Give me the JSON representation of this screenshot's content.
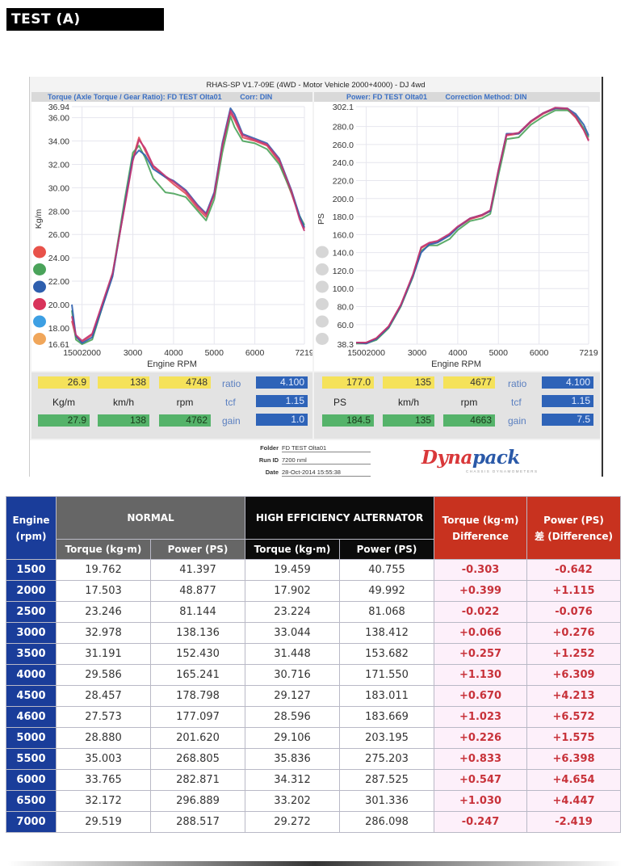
{
  "page_title": "TEST (A)",
  "dyno_sheet": {
    "header": "RHAS-SP V1.7-09E  (4WD - Motor Vehicle 2000+4000) - DJ 4wd",
    "torque_header": "Torque (Axle Torque / Gear Ratio): FD TEST Olta01",
    "torque_corr": "Corr: DIN",
    "power_header": "Power: FD TEST Olta01",
    "power_corr": "Correction Method: DIN",
    "left_readouts": {
      "yellow": [
        "26.9",
        "138",
        "4748"
      ],
      "units": [
        "Kg/m",
        "km/h",
        "rpm"
      ],
      "green": [
        "27.9",
        "138",
        "4762"
      ],
      "k_labels": [
        "ratio",
        "tcf",
        "gain"
      ],
      "k_values": [
        "4.100",
        "1.15",
        "1.0"
      ]
    },
    "right_readouts": {
      "yellow": [
        "177.0",
        "135",
        "4677"
      ],
      "units": [
        "PS",
        "km/h",
        "rpm"
      ],
      "green": [
        "184.5",
        "135",
        "4663"
      ],
      "k_labels": [
        "ratio",
        "tcf",
        "gain"
      ],
      "k_values": [
        "4.100",
        "1.15",
        "7.5"
      ]
    },
    "meta": {
      "folder_label": "Folder",
      "folder_value": "FD TEST Olta01",
      "run_label": "Run ID",
      "run_value": "7200 nml",
      "date_label": "Date",
      "date_value": "28-Oct-2014   15:55:38"
    },
    "logo": {
      "dyna": "Dyna",
      "pack": "pack",
      "sub": "CHASSIS DYNAMOMETERS"
    }
  },
  "chart_data": [
    {
      "type": "line",
      "title": "Torque (Axle Torque / Gear Ratio): FD TEST Olta01",
      "xlabel": "Engine RPM",
      "ylabel": "Kg/m",
      "xlim": [
        1500,
        7219
      ],
      "ylim": [
        16.61,
        36.94
      ],
      "x_ticks": [
        "15002000",
        "3000",
        "4000",
        "5000",
        "6000",
        "7219"
      ],
      "x_tick_values": [
        1750,
        3000,
        4000,
        5000,
        6000,
        7219
      ],
      "y_ticks": [
        "36.94",
        "36.00",
        "34.00",
        "32.00",
        "30.00",
        "28.00",
        "26.00",
        "24.00",
        "22.00",
        "20.00",
        "18.00",
        "16.61"
      ],
      "y_tick_values": [
        36.94,
        36,
        34,
        32,
        30,
        28,
        26,
        24,
        22,
        20,
        18,
        16.61
      ],
      "grid": true,
      "legend_colors": [
        "#e8524a",
        "#4aa35a",
        "#2e5fae",
        "#d8335a",
        "#3d9fe3",
        "#f0a65a"
      ],
      "series": [
        {
          "name": "red",
          "color": "#e04a55",
          "x": [
            1500,
            1600,
            1750,
            2000,
            2500,
            2800,
            3000,
            3150,
            3300,
            3500,
            3800,
            4000,
            4300,
            4600,
            4800,
            5000,
            5200,
            5400,
            5500,
            5700,
            6000,
            6300,
            6600,
            6900,
            7100,
            7219
          ],
          "y": [
            18.6,
            17.2,
            16.8,
            17.4,
            22.5,
            28.5,
            32.5,
            34.3,
            33.2,
            31.8,
            30.9,
            30.3,
            29.5,
            28.2,
            27.5,
            29.5,
            33.5,
            36.4,
            35.8,
            34.3,
            34.0,
            33.6,
            32.2,
            29.5,
            27.5,
            26.5
          ]
        },
        {
          "name": "green",
          "color": "#4aa35a",
          "x": [
            1500,
            1600,
            1750,
            2000,
            2500,
            2800,
            3000,
            3150,
            3300,
            3500,
            3800,
            4000,
            4300,
            4600,
            4800,
            5000,
            5200,
            5400,
            5500,
            5700,
            6000,
            6300,
            6600,
            6900,
            7100,
            7219
          ],
          "y": [
            19.5,
            17.0,
            16.6,
            17.0,
            22.6,
            29.0,
            33.0,
            33.6,
            32.6,
            30.8,
            29.6,
            29.5,
            29.2,
            28.0,
            27.2,
            29.0,
            33.0,
            36.1,
            35.2,
            34.0,
            33.8,
            33.3,
            32.0,
            29.6,
            27.6,
            26.8
          ]
        },
        {
          "name": "blue",
          "color": "#2e5fae",
          "x": [
            1500,
            1600,
            1750,
            2000,
            2500,
            2800,
            3000,
            3150,
            3300,
            3500,
            3800,
            4000,
            4300,
            4600,
            4800,
            5000,
            5200,
            5400,
            5500,
            5700,
            6000,
            6300,
            6600,
            6900,
            7100,
            7219
          ],
          "y": [
            20.0,
            17.3,
            16.7,
            17.2,
            22.4,
            28.6,
            32.6,
            33.2,
            32.8,
            31.6,
            30.9,
            30.6,
            29.8,
            28.5,
            27.8,
            29.6,
            33.8,
            36.8,
            36.3,
            34.6,
            34.2,
            33.8,
            32.5,
            29.8,
            27.6,
            26.6
          ]
        },
        {
          "name": "magenta",
          "color": "#c23372",
          "x": [
            1500,
            1600,
            1750,
            2000,
            2500,
            2800,
            3000,
            3150,
            3300,
            3500,
            3800,
            4000,
            4300,
            4600,
            4800,
            5000,
            5200,
            5400,
            5500,
            5700,
            6000,
            6300,
            6600,
            6900,
            7100,
            7219
          ],
          "y": [
            19.0,
            17.4,
            16.9,
            17.5,
            22.7,
            28.4,
            32.3,
            34.1,
            33.4,
            31.9,
            31.0,
            30.5,
            29.7,
            28.4,
            27.7,
            29.4,
            33.6,
            36.6,
            36.0,
            34.5,
            34.1,
            33.7,
            32.4,
            29.7,
            27.3,
            26.3
          ]
        }
      ]
    },
    {
      "type": "line",
      "title": "Power: FD TEST Olta01",
      "xlabel": "Engine RPM",
      "ylabel": "PS",
      "xlim": [
        1500,
        7219
      ],
      "ylim": [
        38.3,
        302.1
      ],
      "x_ticks": [
        "15002000",
        "3000",
        "4000",
        "5000",
        "6000",
        "7219"
      ],
      "x_tick_values": [
        1750,
        3000,
        4000,
        5000,
        6000,
        7219
      ],
      "y_ticks": [
        "302.1",
        "280.0",
        "260.0",
        "240.0",
        "220.0",
        "200.0",
        "180.0",
        "160.0",
        "140.0",
        "120.0",
        "100.0",
        "80.0",
        "60.0",
        "38.3"
      ],
      "y_tick_values": [
        302.1,
        280,
        260,
        240,
        220,
        200,
        180,
        160,
        140,
        120,
        100,
        80,
        60,
        38.3
      ],
      "grid": true,
      "legend_colors": [
        "#d6d6d6",
        "#d6d6d6",
        "#d6d6d6",
        "#d6d6d6",
        "#d6d6d6",
        "#d6d6d6"
      ],
      "series": [
        {
          "name": "red",
          "color": "#e04a55",
          "x": [
            1500,
            1750,
            2000,
            2300,
            2600,
            2900,
            3100,
            3300,
            3500,
            3800,
            4000,
            4300,
            4600,
            4800,
            5000,
            5200,
            5500,
            5800,
            6100,
            6400,
            6700,
            6900,
            7100,
            7219
          ],
          "y": [
            40,
            40,
            45,
            58,
            82,
            115,
            145,
            150,
            152,
            160,
            168,
            177,
            181,
            186,
            230,
            270,
            272,
            285,
            294,
            300,
            299,
            290,
            276,
            265
          ]
        },
        {
          "name": "green",
          "color": "#4aa35a",
          "x": [
            1500,
            1750,
            2000,
            2300,
            2600,
            2900,
            3100,
            3300,
            3500,
            3800,
            4000,
            4300,
            4600,
            4800,
            5000,
            5200,
            5500,
            5800,
            6100,
            6400,
            6700,
            6900,
            7100,
            7219
          ],
          "y": [
            39,
            39,
            43,
            56,
            80,
            113,
            142,
            148,
            148,
            155,
            165,
            175,
            178,
            183,
            226,
            266,
            268,
            282,
            291,
            298,
            298,
            292,
            278,
            268
          ]
        },
        {
          "name": "blue",
          "color": "#2e5fae",
          "x": [
            1500,
            1750,
            2000,
            2300,
            2600,
            2900,
            3100,
            3300,
            3500,
            3800,
            4000,
            4300,
            4600,
            4800,
            5000,
            5200,
            5500,
            5800,
            6100,
            6400,
            6700,
            6900,
            7100,
            7219
          ],
          "y": [
            40,
            39,
            44,
            57,
            81,
            114,
            140,
            149,
            151,
            159,
            168,
            178,
            182,
            186,
            231,
            272,
            272,
            286,
            295,
            300,
            300,
            294,
            282,
            270
          ]
        },
        {
          "name": "magenta",
          "color": "#c23372",
          "x": [
            1500,
            1750,
            2000,
            2300,
            2600,
            2900,
            3100,
            3300,
            3500,
            3800,
            4000,
            4300,
            4600,
            4800,
            5000,
            5200,
            5500,
            5800,
            6100,
            6400,
            6700,
            6900,
            7100,
            7219
          ],
          "y": [
            40,
            40,
            45,
            58,
            82,
            116,
            146,
            151,
            153,
            161,
            169,
            178,
            182,
            187,
            232,
            271,
            273,
            286,
            295,
            301,
            300,
            291,
            276,
            264
          ]
        }
      ]
    }
  ],
  "table": {
    "header_engine": [
      "Engine",
      "(rpm)"
    ],
    "group_normal": "NORMAL",
    "group_hea": "HIGH EFFICIENCY ALTERNATOR",
    "diff_torque": [
      "Torque (kg·m)",
      "Difference"
    ],
    "diff_power": [
      "Power (PS)",
      "差 (Difference)"
    ],
    "sub_torque": "Torque (kg·m)",
    "sub_power": "Power (PS)",
    "rows": [
      [
        "1500",
        "19.762",
        "41.397",
        "19.459",
        "40.755",
        "-0.303",
        "-0.642"
      ],
      [
        "2000",
        "17.503",
        "48.877",
        "17.902",
        "49.992",
        "+0.399",
        "+1.115"
      ],
      [
        "2500",
        "23.246",
        "81.144",
        "23.224",
        "81.068",
        "-0.022",
        "-0.076"
      ],
      [
        "3000",
        "32.978",
        "138.136",
        "33.044",
        "138.412",
        "+0.066",
        "+0.276"
      ],
      [
        "3500",
        "31.191",
        "152.430",
        "31.448",
        "153.682",
        "+0.257",
        "+1.252"
      ],
      [
        "4000",
        "29.586",
        "165.241",
        "30.716",
        "171.550",
        "+1.130",
        "+6.309"
      ],
      [
        "4500",
        "28.457",
        "178.798",
        "29.127",
        "183.011",
        "+0.670",
        "+4.213"
      ],
      [
        "4600",
        "27.573",
        "177.097",
        "28.596",
        "183.669",
        "+1.023",
        "+6.572"
      ],
      [
        "5000",
        "28.880",
        "201.620",
        "29.106",
        "203.195",
        "+0.226",
        "+1.575"
      ],
      [
        "5500",
        "35.003",
        "268.805",
        "35.836",
        "275.203",
        "+0.833",
        "+6.398"
      ],
      [
        "6000",
        "33.765",
        "282.871",
        "34.312",
        "287.525",
        "+0.547",
        "+4.654"
      ],
      [
        "6500",
        "32.172",
        "296.889",
        "33.202",
        "301.336",
        "+1.030",
        "+4.447"
      ],
      [
        "7000",
        "29.519",
        "288.517",
        "29.272",
        "286.098",
        "-0.247",
        "-2.419"
      ]
    ]
  }
}
